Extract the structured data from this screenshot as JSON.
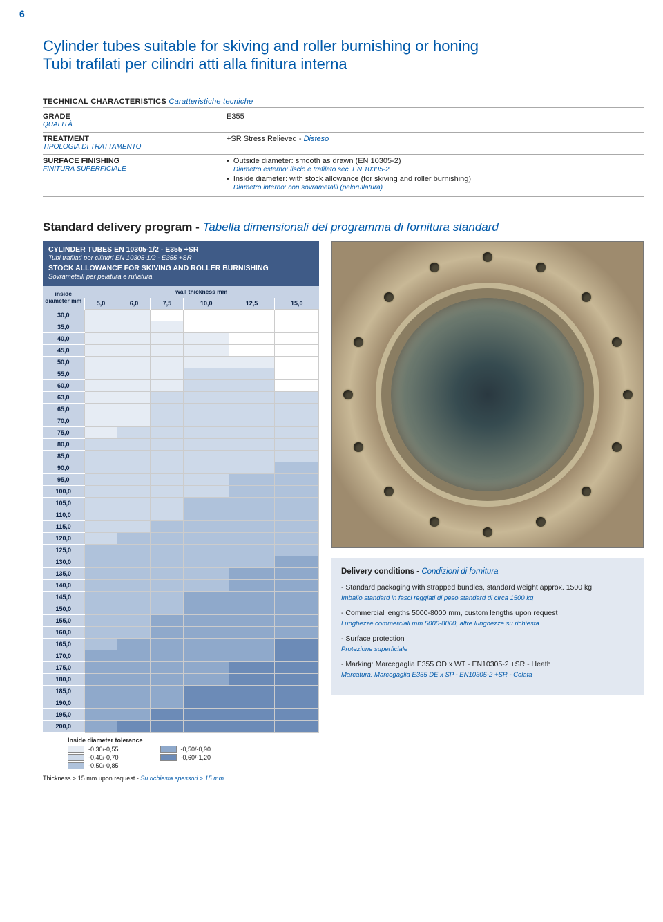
{
  "page_number": "6",
  "title_en": "Cylinder tubes suitable for skiving and roller burnishing or honing",
  "title_it": "Tubi trafilati per cilindri atti alla finitura interna",
  "tech_header_en": "TECHNICAL CHARACTERISTICS",
  "tech_header_it": "Caratteristiche tecniche",
  "grade": {
    "label_en": "GRADE",
    "label_it": "QUALITÀ",
    "value": "E355"
  },
  "treatment": {
    "label_en": "TREATMENT",
    "label_it": "TIPOLOGIA DI TRATTAMENTO",
    "value_en": "+SR Stress Relieved -",
    "value_it": "Disteso"
  },
  "finishing": {
    "label_en": "SURFACE FINISHING",
    "label_it": "FINITURA SUPERFICIALE",
    "b1_en": "Outside diameter: smooth as drawn (EN 10305-2)",
    "b1_it": "Diametro esterno: liscio e trafilato sec. EN 10305-2",
    "b2_en": "Inside diameter: with stock allowance (for skiving and roller burnishing)",
    "b2_it": "Diametro interno: con sovrametalli (pelorullatura)"
  },
  "subheading_en": "Standard delivery program -",
  "subheading_it": "Tabella dimensionali del programma di fornitura standard",
  "table": {
    "title1": "CYLINDER TUBES EN 10305-1/2 - E355 +SR",
    "title2": "Tubi trafilati per cilindri EN 10305-1/2 - E355 +SR",
    "title3": "STOCK ALLOWANCE FOR SKIVING AND ROLLER BURNISHING",
    "title4": "Sovrametalli per pelatura e rullatura",
    "diam_head1": "inside",
    "diam_head2": "diameter mm",
    "wall_head": "wall thickness mm",
    "columns": [
      "5,0",
      "6,0",
      "7,5",
      "10,0",
      "12,5",
      "15,0"
    ],
    "diameters": [
      "30,0",
      "35,0",
      "40,0",
      "45,0",
      "50,0",
      "55,0",
      "60,0",
      "63,0",
      "65,0",
      "70,0",
      "75,0",
      "80,0",
      "85,0",
      "90,0",
      "95,0",
      "100,0",
      "105,0",
      "110,0",
      "115,0",
      "120,0",
      "125,0",
      "130,0",
      "135,0",
      "140,0",
      "145,0",
      "150,0",
      "155,0",
      "160,0",
      "165,0",
      "170,0",
      "175,0",
      "180,0",
      "185,0",
      "190,0",
      "195,0",
      "200,0"
    ],
    "shade_colors": {
      "a": "#e6ecf4",
      "b": "#cdd9e9",
      "c": "#afc2db",
      "d": "#8fa9cb",
      "e": "#6c8bb7"
    },
    "grid": [
      [
        "a",
        "a",
        "",
        "",
        "",
        ""
      ],
      [
        "a",
        "a",
        "a",
        "",
        "",
        ""
      ],
      [
        "a",
        "a",
        "a",
        "a",
        "",
        ""
      ],
      [
        "a",
        "a",
        "a",
        "a",
        "",
        ""
      ],
      [
        "a",
        "a",
        "a",
        "a",
        "a",
        ""
      ],
      [
        "a",
        "a",
        "a",
        "b",
        "b",
        ""
      ],
      [
        "a",
        "a",
        "a",
        "b",
        "b",
        ""
      ],
      [
        "a",
        "a",
        "b",
        "b",
        "b",
        "b"
      ],
      [
        "a",
        "a",
        "b",
        "b",
        "b",
        "b"
      ],
      [
        "a",
        "a",
        "b",
        "b",
        "b",
        "b"
      ],
      [
        "a",
        "b",
        "b",
        "b",
        "b",
        "b"
      ],
      [
        "b",
        "b",
        "b",
        "b",
        "b",
        "b"
      ],
      [
        "b",
        "b",
        "b",
        "b",
        "b",
        "b"
      ],
      [
        "b",
        "b",
        "b",
        "b",
        "b",
        "c"
      ],
      [
        "b",
        "b",
        "b",
        "b",
        "c",
        "c"
      ],
      [
        "b",
        "b",
        "b",
        "b",
        "c",
        "c"
      ],
      [
        "b",
        "b",
        "b",
        "c",
        "c",
        "c"
      ],
      [
        "b",
        "b",
        "b",
        "c",
        "c",
        "c"
      ],
      [
        "b",
        "b",
        "c",
        "c",
        "c",
        "c"
      ],
      [
        "b",
        "c",
        "c",
        "c",
        "c",
        "c"
      ],
      [
        "c",
        "c",
        "c",
        "c",
        "c",
        "c"
      ],
      [
        "c",
        "c",
        "c",
        "c",
        "c",
        "d"
      ],
      [
        "c",
        "c",
        "c",
        "c",
        "d",
        "d"
      ],
      [
        "c",
        "c",
        "c",
        "c",
        "d",
        "d"
      ],
      [
        "c",
        "c",
        "c",
        "d",
        "d",
        "d"
      ],
      [
        "c",
        "c",
        "c",
        "d",
        "d",
        "d"
      ],
      [
        "c",
        "c",
        "d",
        "d",
        "d",
        "d"
      ],
      [
        "c",
        "c",
        "d",
        "d",
        "d",
        "d"
      ],
      [
        "c",
        "d",
        "d",
        "d",
        "d",
        "e"
      ],
      [
        "d",
        "d",
        "d",
        "d",
        "d",
        "e"
      ],
      [
        "d",
        "d",
        "d",
        "d",
        "e",
        "e"
      ],
      [
        "d",
        "d",
        "d",
        "d",
        "e",
        "e"
      ],
      [
        "d",
        "d",
        "d",
        "e",
        "e",
        "e"
      ],
      [
        "d",
        "d",
        "d",
        "e",
        "e",
        "e"
      ],
      [
        "d",
        "d",
        "e",
        "e",
        "e",
        "e"
      ],
      [
        "d",
        "e",
        "e",
        "e",
        "e",
        "e"
      ]
    ]
  },
  "legend": {
    "title": "Inside diameter tolerance",
    "items_left": [
      {
        "shade": "a",
        "label": "-0,30/-0,55"
      },
      {
        "shade": "b",
        "label": "-0,40/-0,70"
      },
      {
        "shade": "c",
        "label": "-0,50/-0,85"
      }
    ],
    "items_right": [
      {
        "shade": "d",
        "label": "-0,50/-0,90"
      },
      {
        "shade": "e",
        "label": "-0,60/-1,20"
      }
    ]
  },
  "footnote_en": "Thickness > 15 mm upon request -",
  "footnote_it": "Su richiesta spessori > 15 mm",
  "delivery": {
    "title_en": "Delivery conditions -",
    "title_it": "Condizioni di fornitura",
    "items": [
      {
        "en": "- Standard packaging with strapped bundles, standard weight approx. 1500 kg",
        "it": "Imballo standard in fasci reggiati di peso standard di circa 1500 kg"
      },
      {
        "en": "- Commercial lengths 5000-8000 mm, custom lengths upon request",
        "it": "Lunghezze commerciali mm 5000-8000, altre lunghezze su richiesta"
      },
      {
        "en": "- Surface protection",
        "it": "Protezione superficiale"
      },
      {
        "en": "- Marking: Marcegaglia E355 OD x WT - EN10305-2 +SR - Heath",
        "it": "Marcatura: Marcegaglia E355 DE x SP - EN10305-2 +SR - Colata"
      }
    ]
  }
}
